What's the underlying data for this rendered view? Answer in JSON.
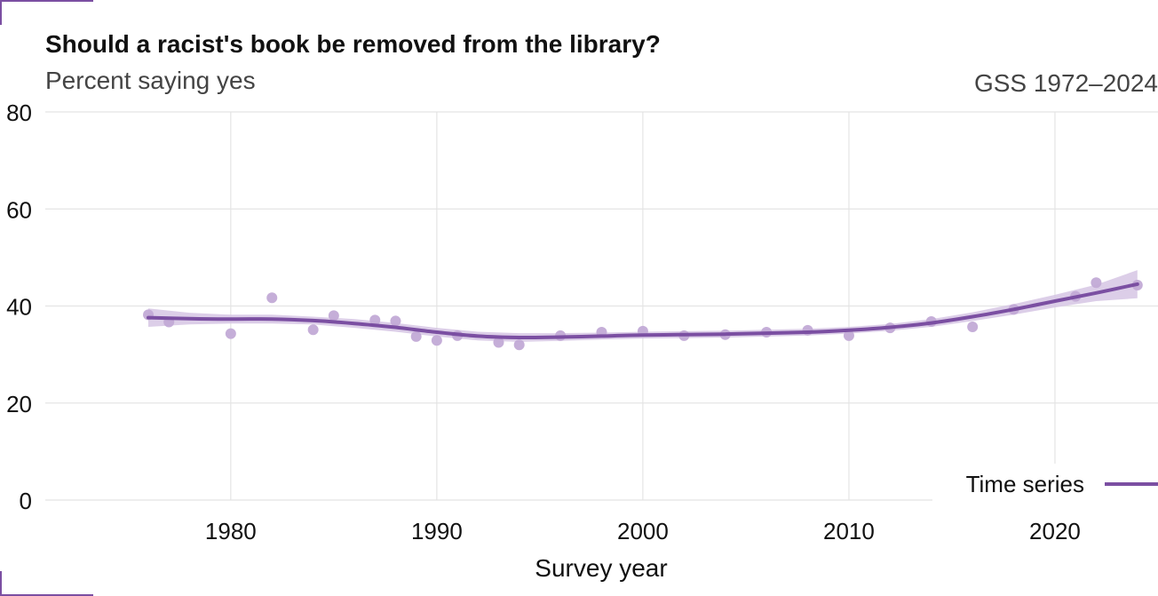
{
  "chart_data": {
    "type": "line",
    "title": "Should a racist's book be removed from the library?",
    "subtitle": "Percent saying yes",
    "source": "GSS 1972–2024",
    "xlabel": "Survey year",
    "ylabel": "",
    "xlim": [
      1971,
      2025
    ],
    "ylim": [
      0,
      80
    ],
    "x_ticks": [
      1980,
      1990,
      2000,
      2010,
      2020
    ],
    "y_ticks": [
      0,
      20,
      40,
      60,
      80
    ],
    "grid": true,
    "legend": {
      "placement": "bottom-right",
      "entries": [
        "Time series"
      ]
    },
    "colors": {
      "series": "#7b4fa2",
      "band": "#d6c6e4",
      "points": "#c2aad6"
    },
    "points": [
      {
        "x": 1976,
        "y": 38.2
      },
      {
        "x": 1977,
        "y": 36.7
      },
      {
        "x": 1980,
        "y": 34.3
      },
      {
        "x": 1982,
        "y": 41.7
      },
      {
        "x": 1984,
        "y": 35.1
      },
      {
        "x": 1985,
        "y": 38.0
      },
      {
        "x": 1987,
        "y": 37.1
      },
      {
        "x": 1988,
        "y": 36.9
      },
      {
        "x": 1989,
        "y": 33.7
      },
      {
        "x": 1990,
        "y": 32.9
      },
      {
        "x": 1991,
        "y": 33.9
      },
      {
        "x": 1993,
        "y": 32.5
      },
      {
        "x": 1994,
        "y": 32.0
      },
      {
        "x": 1996,
        "y": 33.9
      },
      {
        "x": 1998,
        "y": 34.6
      },
      {
        "x": 2000,
        "y": 34.8
      },
      {
        "x": 2002,
        "y": 33.9
      },
      {
        "x": 2004,
        "y": 34.1
      },
      {
        "x": 2006,
        "y": 34.6
      },
      {
        "x": 2008,
        "y": 35.0
      },
      {
        "x": 2010,
        "y": 33.9
      },
      {
        "x": 2012,
        "y": 35.5
      },
      {
        "x": 2014,
        "y": 36.8
      },
      {
        "x": 2016,
        "y": 35.7
      },
      {
        "x": 2018,
        "y": 39.3
      },
      {
        "x": 2021,
        "y": 42.0
      },
      {
        "x": 2022,
        "y": 44.8
      },
      {
        "x": 2024,
        "y": 44.3
      }
    ],
    "series": [
      {
        "name": "Time series",
        "x": [
          1976,
          1978,
          1980,
          1982,
          1984,
          1986,
          1988,
          1990,
          1992,
          1994,
          1996,
          1998,
          2000,
          2002,
          2004,
          2006,
          2008,
          2010,
          2012,
          2014,
          2016,
          2018,
          2020,
          2022,
          2024
        ],
        "y": [
          37.6,
          37.4,
          37.3,
          37.3,
          37.0,
          36.4,
          35.6,
          34.6,
          33.8,
          33.5,
          33.6,
          33.8,
          34.0,
          34.1,
          34.2,
          34.4,
          34.6,
          35.0,
          35.6,
          36.5,
          37.8,
          39.3,
          41.0,
          42.7,
          44.5
        ],
        "band_low": [
          35.7,
          36.2,
          36.4,
          36.4,
          36.2,
          35.5,
          34.7,
          33.7,
          32.9,
          32.6,
          32.8,
          33.1,
          33.3,
          33.4,
          33.5,
          33.7,
          33.9,
          34.3,
          34.9,
          35.7,
          36.9,
          38.2,
          39.7,
          41.0,
          41.6
        ],
        "band_high": [
          39.5,
          38.6,
          38.2,
          38.2,
          37.8,
          37.3,
          36.5,
          35.5,
          34.7,
          34.4,
          34.4,
          34.5,
          34.7,
          34.8,
          34.9,
          35.1,
          35.3,
          35.7,
          36.3,
          37.3,
          38.7,
          40.4,
          42.3,
          44.4,
          47.4
        ]
      }
    ]
  }
}
